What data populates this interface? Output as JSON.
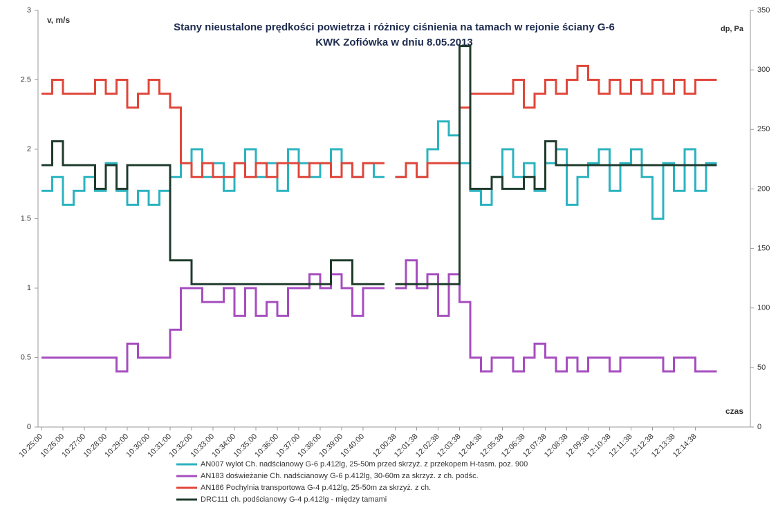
{
  "chart_data": {
    "type": "step-line",
    "title": "Stany nieustalone prędkości powietrza i różnicy ciśnienia na tamach  w rejonie ściany G-6",
    "subtitle": "KWK Zofiówka w dniu 8.05.2013",
    "y_label": "v, m/s",
    "y2_label": "dp, Pa",
    "x_label": "czas",
    "categories": [
      "10:25:00",
      null,
      "10:26:00",
      null,
      "10:27:00",
      null,
      "10:28:00",
      null,
      "10:29:00",
      null,
      "10:30:00",
      null,
      "10:31:00",
      null,
      "10:32:00",
      null,
      "10:33:00",
      null,
      "10:34:00",
      null,
      "10:35:00",
      null,
      "10:36:00",
      null,
      "10:37:00",
      null,
      "10:38:00",
      null,
      "10:39:00",
      null,
      "10:40:00",
      null,
      null,
      "12:00:38",
      null,
      "12:01:38",
      null,
      "12:02:38",
      null,
      "12:03:38",
      null,
      "12:04:38",
      null,
      "12:05:38",
      null,
      "12:06:38",
      null,
      "12:07:38",
      null,
      "12:08:38",
      null,
      "12:09:38",
      null,
      "12:10:38",
      null,
      "12:11:38",
      null,
      "12:12:38",
      null,
      "12:13:38",
      null,
      "12:14:38",
      null
    ],
    "ylim": [
      0,
      3
    ],
    "yticks": [
      0,
      0.5,
      1,
      1.5,
      2,
      2.5,
      3
    ],
    "y2lim": [
      0,
      350
    ],
    "y2ticks": [
      0,
      50,
      100,
      150,
      200,
      250,
      300,
      350
    ],
    "grid": false,
    "series": [
      {
        "name": "AN007 wylot Ch. nadścianowy G-6 p.412lg, 25-50m przed skrzyż. z przekopem H-tasm. poz. 900",
        "color": "#2bb3c0",
        "values": [
          1.7,
          1.8,
          1.6,
          1.7,
          1.8,
          1.7,
          1.9,
          1.7,
          1.6,
          1.7,
          1.6,
          1.7,
          1.8,
          1.9,
          2.0,
          1.8,
          1.9,
          1.7,
          1.9,
          2.0,
          1.8,
          1.9,
          1.7,
          2.0,
          1.9,
          1.8,
          1.9,
          2.0,
          1.9,
          1.8,
          1.9,
          1.8,
          null,
          1.8,
          1.9,
          1.8,
          2.0,
          2.2,
          2.1,
          1.9,
          1.7,
          1.6,
          1.8,
          2.0,
          1.8,
          1.9,
          1.7,
          1.9,
          2.0,
          1.6,
          1.8,
          1.9,
          2.0,
          1.7,
          1.9,
          2.0,
          1.8,
          1.5,
          1.9,
          1.7,
          2.0,
          1.7,
          1.9
        ]
      },
      {
        "name": "AN183 doświeżanie Ch. nadścianowy G-6 p.412lg, 30-60m za skrzyż. z ch. podśc.",
        "color": "#a64dbf",
        "values": [
          0.5,
          0.5,
          0.5,
          0.5,
          0.5,
          0.5,
          0.5,
          0.4,
          0.6,
          0.5,
          0.5,
          0.5,
          0.7,
          1.0,
          1.0,
          0.9,
          0.9,
          1.0,
          0.8,
          1.0,
          0.8,
          0.9,
          0.8,
          1.0,
          1.0,
          1.1,
          1.0,
          1.1,
          1.0,
          0.8,
          1.0,
          1.0,
          null,
          1.0,
          1.2,
          1.0,
          1.1,
          0.8,
          1.1,
          0.9,
          0.5,
          0.4,
          0.5,
          0.5,
          0.4,
          0.5,
          0.6,
          0.5,
          0.4,
          0.5,
          0.4,
          0.5,
          0.5,
          0.4,
          0.5,
          0.5,
          0.5,
          0.5,
          0.4,
          0.5,
          0.5,
          0.4,
          0.4
        ]
      },
      {
        "name": "AN186 Pochylnia transportowa G-4 p.412lg, 25-50m za skrzyż. z ch.",
        "color": "#e0463a",
        "values": [
          2.4,
          2.5,
          2.4,
          2.4,
          2.4,
          2.5,
          2.4,
          2.5,
          2.3,
          2.4,
          2.5,
          2.4,
          2.3,
          1.9,
          1.8,
          1.9,
          1.8,
          1.8,
          1.9,
          1.8,
          1.9,
          1.8,
          1.9,
          1.9,
          1.8,
          1.9,
          1.9,
          1.8,
          1.9,
          1.8,
          1.9,
          1.9,
          null,
          1.8,
          1.9,
          1.8,
          1.9,
          1.9,
          1.9,
          2.3,
          2.4,
          2.4,
          2.4,
          2.4,
          2.5,
          2.3,
          2.4,
          2.5,
          2.4,
          2.5,
          2.6,
          2.5,
          2.4,
          2.5,
          2.4,
          2.5,
          2.4,
          2.5,
          2.4,
          2.5,
          2.4,
          2.5,
          2.5
        ]
      },
      {
        "name": "DRC111 ch. podścianowy G-4 p.412lg - między tamami",
        "color": "#1f3b2c",
        "axis": "y2",
        "values": [
          220,
          240,
          220,
          220,
          220,
          200,
          220,
          200,
          220,
          220,
          220,
          220,
          140,
          140,
          120,
          120,
          120,
          120,
          120,
          120,
          120,
          120,
          120,
          120,
          120,
          120,
          120,
          140,
          140,
          120,
          120,
          120,
          null,
          120,
          120,
          120,
          120,
          120,
          120,
          320,
          200,
          200,
          210,
          200,
          200,
          210,
          200,
          240,
          220,
          220,
          220,
          220,
          220,
          220,
          220,
          220,
          220,
          220,
          220,
          220,
          220,
          220,
          220
        ]
      }
    ]
  }
}
